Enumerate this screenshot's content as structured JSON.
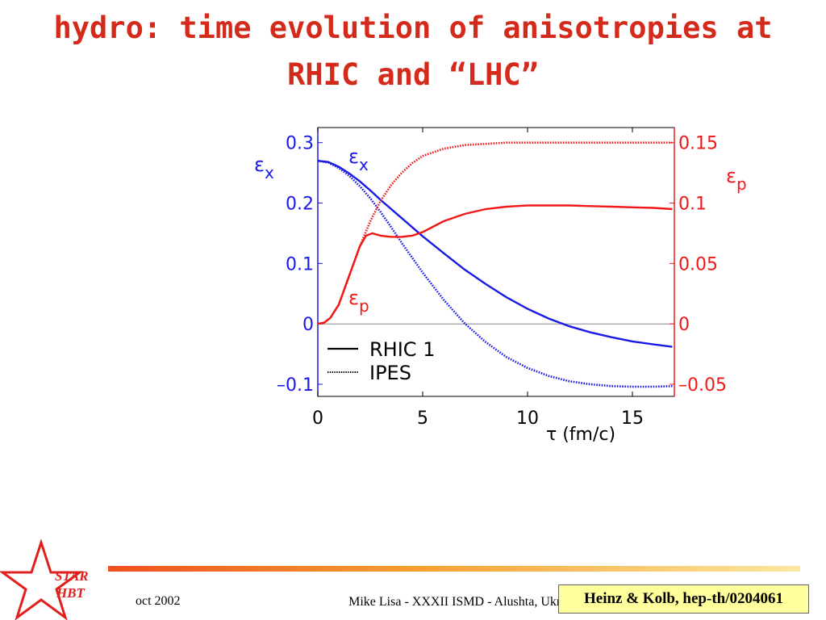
{
  "slide": {
    "title_line1": "hydro: time evolution of anisotropies at",
    "title_line2": "RHIC and “LHC”"
  },
  "chart_data": {
    "type": "line",
    "x_axis": {
      "label": "τ (fm/c)",
      "range": [
        0,
        17
      ],
      "ticks": [
        0,
        5,
        10,
        15
      ],
      "tick_labels": [
        "0",
        "5",
        "10",
        "15"
      ]
    },
    "y_left": {
      "label": "ε",
      "label_sub": "x",
      "range": [
        -0.12,
        0.325
      ],
      "ticks": [
        -0.1,
        0,
        0.1,
        0.2,
        0.3
      ],
      "tick_labels": [
        "–0.1",
        "0",
        "0.1",
        "0.2",
        "0.3"
      ],
      "color": "#1a1ae6"
    },
    "y_right": {
      "label": "ε",
      "label_sub": "p",
      "range": [
        -0.06,
        0.1625
      ],
      "ticks": [
        -0.05,
        0,
        0.05,
        0.1,
        0.15
      ],
      "tick_labels": [
        "–0.05",
        "0",
        "0.05",
        "0.1",
        "0.15"
      ],
      "color": "#f01818"
    },
    "zero_line": true,
    "annotations": [
      {
        "text": "ε",
        "sub": "x",
        "color": "#1a1ae6"
      },
      {
        "text": "ε",
        "sub": "p",
        "color": "#f01818"
      }
    ],
    "legend": {
      "placement": "bottom-left",
      "entries": [
        {
          "label": "RHIC 1",
          "style": "solid"
        },
        {
          "label": "IPES",
          "style": "dotted"
        }
      ]
    },
    "series": [
      {
        "name": "RHIC 1",
        "quantity": "eps_x",
        "axis": "left",
        "style": "solid",
        "color": "#1a1ae6",
        "x": [
          0,
          0.5,
          1,
          1.5,
          2,
          2.5,
          3,
          4,
          5,
          6,
          7,
          8,
          9,
          10,
          11,
          12,
          13,
          14,
          15,
          16,
          16.9
        ],
        "y": [
          0.27,
          0.268,
          0.26,
          0.249,
          0.236,
          0.221,
          0.205,
          0.175,
          0.145,
          0.117,
          0.09,
          0.066,
          0.044,
          0.025,
          0.009,
          -0.004,
          -0.014,
          -0.022,
          -0.029,
          -0.034,
          -0.038
        ]
      },
      {
        "name": "IPES",
        "quantity": "eps_x",
        "axis": "left",
        "style": "dotted",
        "color": "#1a1ae6",
        "x": [
          0,
          0.5,
          1,
          1.5,
          2,
          2.5,
          3,
          3.5,
          4,
          5,
          6,
          7,
          8,
          9,
          10,
          11,
          12,
          13,
          14,
          15,
          16,
          16.9
        ],
        "y": [
          0.27,
          0.267,
          0.258,
          0.245,
          0.228,
          0.208,
          0.185,
          0.16,
          0.134,
          0.085,
          0.04,
          0.001,
          -0.03,
          -0.055,
          -0.073,
          -0.086,
          -0.095,
          -0.1,
          -0.103,
          -0.104,
          -0.104,
          -0.103
        ]
      },
      {
        "name": "RHIC 1",
        "quantity": "eps_p",
        "axis": "right",
        "style": "solid",
        "color": "#f01818",
        "x": [
          0,
          0.3,
          0.6,
          1,
          1.5,
          2,
          2.3,
          2.6,
          3,
          3.5,
          4,
          4.5,
          5,
          6,
          7,
          8,
          9,
          10,
          11,
          12,
          13,
          14,
          15,
          16,
          16.9
        ],
        "y": [
          0,
          0.001,
          0.005,
          0.016,
          0.04,
          0.064,
          0.073,
          0.075,
          0.073,
          0.072,
          0.072,
          0.073,
          0.076,
          0.085,
          0.091,
          0.095,
          0.097,
          0.098,
          0.098,
          0.098,
          0.0975,
          0.097,
          0.0965,
          0.096,
          0.095
        ]
      },
      {
        "name": "IPES",
        "quantity": "eps_p",
        "axis": "right",
        "style": "dotted",
        "color": "#f01818",
        "x": [
          0,
          0.3,
          0.6,
          1,
          1.5,
          2,
          2.5,
          3,
          3.5,
          4,
          4.5,
          5,
          6,
          7,
          8,
          9,
          10,
          12,
          14,
          16,
          16.9
        ],
        "y": [
          0,
          0.001,
          0.005,
          0.016,
          0.04,
          0.064,
          0.085,
          0.102,
          0.115,
          0.125,
          0.133,
          0.139,
          0.145,
          0.148,
          0.149,
          0.15,
          0.15,
          0.15,
          0.15,
          0.15,
          0.15
        ]
      }
    ]
  },
  "logo": {
    "line1": "STAR",
    "line2": "HBT",
    "color": "#e0201c"
  },
  "footer": {
    "date": "oct 2002",
    "talk": "Mike Lisa - XXXII ISMD - Alushta, Ukraine",
    "citation": "Heinz & Kolb, hep-th/0204061",
    "bar_colors": [
      "#f0501e",
      "#f6a030",
      "#fbe8a0"
    ]
  }
}
